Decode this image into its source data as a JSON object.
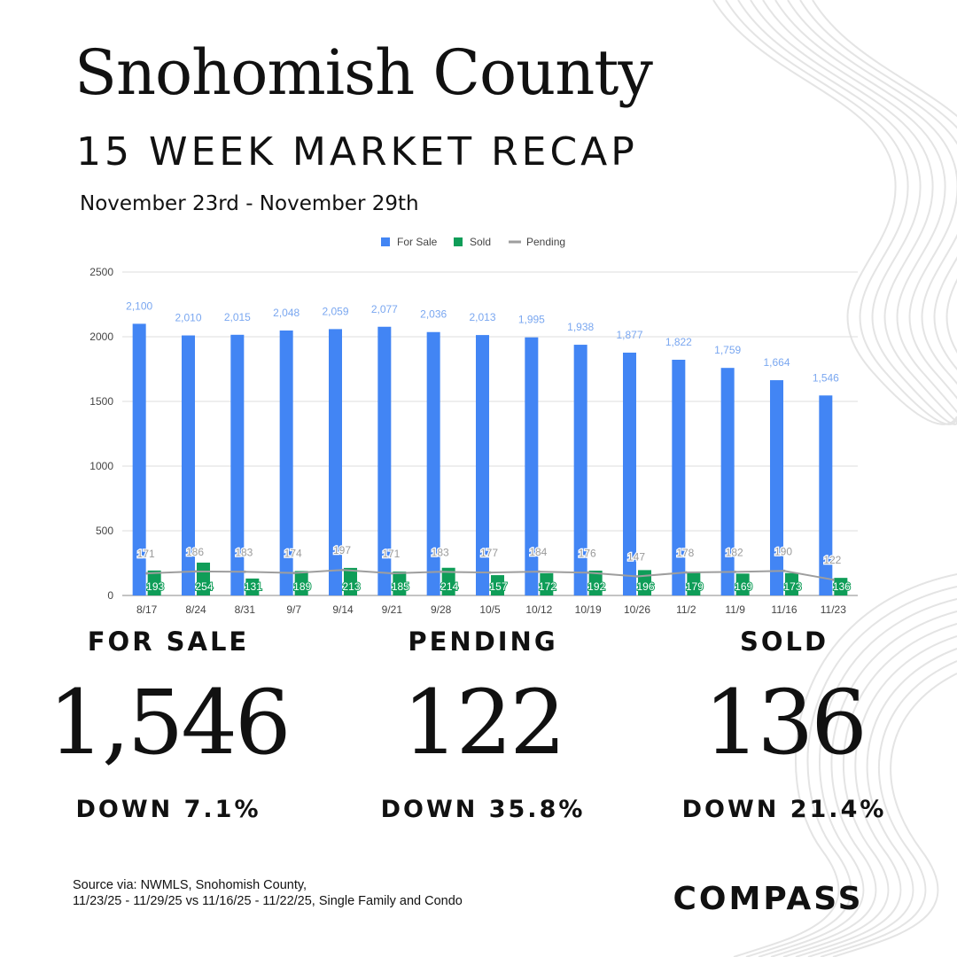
{
  "header": {
    "title": "Snohomish County",
    "subtitle": "15 WEEK MARKET RECAP",
    "date_range": "November 23rd - November 29th"
  },
  "colors": {
    "for_sale": "#4285F4",
    "sold": "#0F9D58",
    "pending": "#9E9E9E",
    "text": "#111111"
  },
  "chart_data": {
    "type": "bar",
    "title": "",
    "xlabel": "",
    "ylabel": "",
    "ylim": [
      0,
      2500
    ],
    "yticks": [
      0,
      500,
      1000,
      1500,
      2000,
      2500
    ],
    "grid": true,
    "legend_position": "top-center",
    "categories": [
      "8/17",
      "8/24",
      "8/31",
      "9/7",
      "9/14",
      "9/21",
      "9/28",
      "10/5",
      "10/12",
      "10/19",
      "10/26",
      "11/2",
      "11/9",
      "11/16",
      "11/23"
    ],
    "series": [
      {
        "name": "For Sale",
        "kind": "bar",
        "color": "#4285F4",
        "values": [
          2100,
          2010,
          2015,
          2048,
          2059,
          2077,
          2036,
          2013,
          1995,
          1938,
          1877,
          1822,
          1759,
          1664,
          1546
        ],
        "labels": [
          "2,100",
          "2,010",
          "2,015",
          "2,048",
          "2,059",
          "2,077",
          "2,036",
          "2,013",
          "1,995",
          "1,938",
          "1,877",
          "1,822",
          "1,759",
          "1,664",
          "1,546"
        ]
      },
      {
        "name": "Sold",
        "kind": "bar",
        "color": "#0F9D58",
        "values": [
          193,
          254,
          131,
          189,
          213,
          185,
          214,
          157,
          172,
          192,
          196,
          179,
          169,
          173,
          136
        ],
        "labels": [
          "193",
          "254",
          "131",
          "189",
          "213",
          "185",
          "214",
          "157",
          "172",
          "192",
          "196",
          "179",
          "169",
          "173",
          "136"
        ]
      },
      {
        "name": "Pending",
        "kind": "line",
        "color": "#9E9E9E",
        "values": [
          171,
          186,
          183,
          174,
          197,
          171,
          183,
          177,
          184,
          176,
          147,
          178,
          182,
          190,
          122
        ],
        "labels": [
          "171",
          "186",
          "183",
          "174",
          "197",
          "171",
          "183",
          "177",
          "184",
          "176",
          "147",
          "178",
          "182",
          "190",
          "122"
        ]
      }
    ]
  },
  "stats": [
    {
      "label": "FOR SALE",
      "value": "1,546",
      "change": "DOWN 7.1%"
    },
    {
      "label": "PENDING",
      "value": "122",
      "change": "DOWN 35.8%"
    },
    {
      "label": "SOLD",
      "value": "136",
      "change": "DOWN 21.4%"
    }
  ],
  "footer": {
    "source_line1": "Source via: NWMLS, Snohomish County,",
    "source_line2": "11/23/25 - 11/29/25 vs 11/16/25 - 11/22/25, Single Family and Condo",
    "logo": "COMPASS"
  }
}
